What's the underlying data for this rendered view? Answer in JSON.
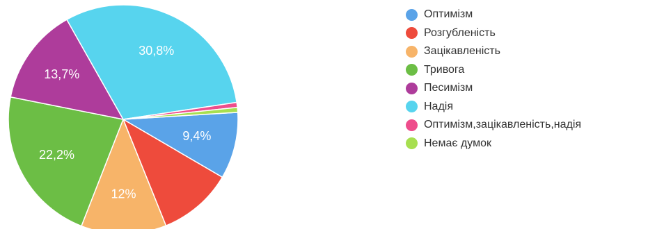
{
  "chart_data": {
    "type": "pie",
    "title": "",
    "legend_position": "right",
    "slices": [
      {
        "name": "Оптимізм",
        "value": 9.4,
        "label": "9,4%",
        "color": "#5aa3e8"
      },
      {
        "name": "Розгубленість",
        "value": 10.5,
        "label": "",
        "color": "#ee4b3c"
      },
      {
        "name": "Зацікавленість",
        "value": 12,
        "label": "12%",
        "color": "#f7b469"
      },
      {
        "name": "Тривога",
        "value": 22.2,
        "label": "22,2%",
        "color": "#6cbe45"
      },
      {
        "name": "Песимізм",
        "value": 13.7,
        "label": "13,7%",
        "color": "#ae3c9b"
      },
      {
        "name": "Надія",
        "value": 30.8,
        "label": "30,8%",
        "color": "#57d4ee"
      },
      {
        "name": "Оптимізм,зацікавленість,надія",
        "value": 0.7,
        "label": "",
        "color": "#ee4d8c"
      },
      {
        "name": "Немає думок",
        "value": 0.7,
        "label": "",
        "color": "#a7df50"
      }
    ]
  }
}
